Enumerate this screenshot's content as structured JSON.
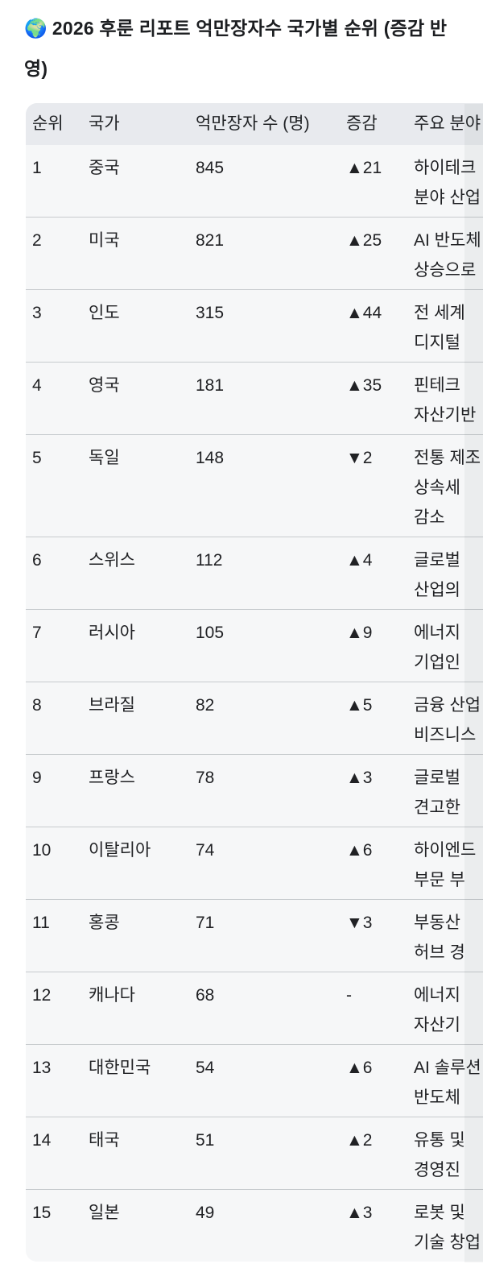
{
  "title_icon": "🌍",
  "title": "2026 후룬 리포트 억만장자수 국가별 순위 (증감 반영)",
  "table": {
    "columns": {
      "rank": "순위",
      "country": "국가",
      "count": "억만장자 수 (명)",
      "change": "증감",
      "sector": "주요 분야"
    },
    "rows": [
      {
        "rank": "1",
        "country": "중국",
        "count": "845",
        "change": "▲21",
        "sector_lines": [
          "하이테크",
          "분야 산업"
        ]
      },
      {
        "rank": "2",
        "country": "미국",
        "count": "821",
        "change": "▲25",
        "sector_lines": [
          "AI 반도체",
          "상승으로"
        ]
      },
      {
        "rank": "3",
        "country": "인도",
        "count": "315",
        "change": "▲44",
        "sector_lines": [
          "전 세계",
          "디지털"
        ]
      },
      {
        "rank": "4",
        "country": "영국",
        "count": "181",
        "change": "▲35",
        "sector_lines": [
          "핀테크",
          "자산기반"
        ]
      },
      {
        "rank": "5",
        "country": "독일",
        "count": "148",
        "change": "▼2",
        "sector_lines": [
          "전통 제조",
          "상속세",
          "감소"
        ]
      },
      {
        "rank": "6",
        "country": "스위스",
        "count": "112",
        "change": "▲4",
        "sector_lines": [
          "글로벌",
          "산업의"
        ]
      },
      {
        "rank": "7",
        "country": "러시아",
        "count": "105",
        "change": "▲9",
        "sector_lines": [
          "에너지",
          "기업인"
        ]
      },
      {
        "rank": "8",
        "country": "브라질",
        "count": "82",
        "change": "▲5",
        "sector_lines": [
          "금융 산업",
          "비즈니스"
        ]
      },
      {
        "rank": "9",
        "country": "프랑스",
        "count": "78",
        "change": "▲3",
        "sector_lines": [
          "글로벌",
          "견고한"
        ]
      },
      {
        "rank": "10",
        "country": "이탈리아",
        "count": "74",
        "change": "▲6",
        "sector_lines": [
          "하이엔드",
          "부문 부"
        ]
      },
      {
        "rank": "11",
        "country": "홍콩",
        "count": "71",
        "change": "▼3",
        "sector_lines": [
          "부동산",
          "허브 경"
        ]
      },
      {
        "rank": "12",
        "country": "캐나다",
        "count": "68",
        "change": "-",
        "sector_lines": [
          "에너지",
          "자산기"
        ]
      },
      {
        "rank": "13",
        "country": "대한민국",
        "count": "54",
        "change": "▲6",
        "sector_lines": [
          "AI 솔루션",
          "반도체"
        ]
      },
      {
        "rank": "14",
        "country": "태국",
        "count": "51",
        "change": "▲2",
        "sector_lines": [
          "유통 및",
          "경영진"
        ]
      },
      {
        "rank": "15",
        "country": "일본",
        "count": "49",
        "change": "▲3",
        "sector_lines": [
          "로봇 및",
          "기술 창업"
        ]
      }
    ]
  }
}
